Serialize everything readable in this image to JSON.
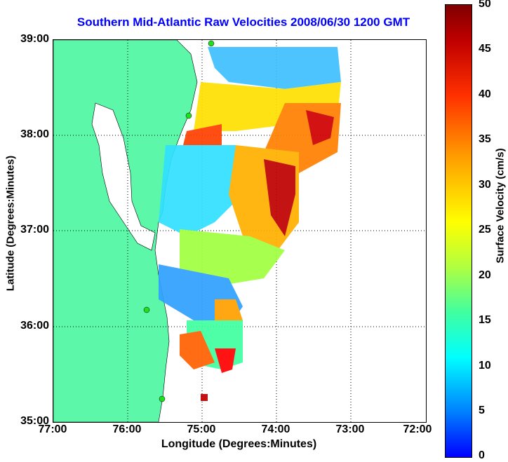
{
  "title": "Southern Mid-Atlantic Raw Velocities 2008/06/30 1200 GMT",
  "xlabel": "Longitude (Degrees:Minutes)",
  "ylabel": "Latitude (Degrees:Minutes)",
  "x_ticks": [
    "77:00",
    "76:00",
    "75:00",
    "74:00",
    "73:00",
    "72:00"
  ],
  "y_ticks": [
    "39:00",
    "38:00",
    "37:00",
    "36:00",
    "35:00"
  ],
  "colorbar": {
    "label": "Surface Velocity (cm/s)",
    "ticks": [
      "50",
      "45",
      "40",
      "35",
      "30",
      "25",
      "20",
      "15",
      "10",
      "5",
      "0"
    ],
    "range": [
      0,
      50
    ]
  },
  "colors": {
    "land": "#5cf7a8",
    "title": "#0000ff",
    "station": "#20e020"
  }
}
